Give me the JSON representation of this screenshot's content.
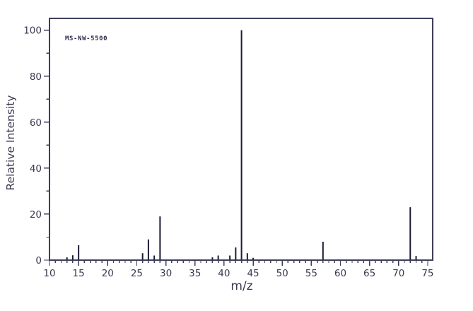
{
  "chart_data": {
    "type": "bar",
    "subtype": "mass-spectrum-stick-plot",
    "title": "",
    "annotation": "MS-NW-5500",
    "xlabel": "m/z",
    "ylabel": "Relative Intensity",
    "xlim": [
      10,
      76
    ],
    "ylim": [
      0,
      105
    ],
    "x_major_ticks": [
      10,
      15,
      20,
      25,
      30,
      35,
      40,
      45,
      50,
      55,
      60,
      65,
      70,
      75
    ],
    "x_minor_step": 1,
    "y_major_ticks": [
      0,
      20,
      40,
      60,
      80,
      100
    ],
    "y_minor_step": 10,
    "grid": false,
    "legend": false,
    "peaks": [
      {
        "mz": 13,
        "intensity": 1.2
      },
      {
        "mz": 14,
        "intensity": 2.1
      },
      {
        "mz": 15,
        "intensity": 6.5
      },
      {
        "mz": 26,
        "intensity": 3.0
      },
      {
        "mz": 27,
        "intensity": 9.0
      },
      {
        "mz": 28,
        "intensity": 2.0
      },
      {
        "mz": 29,
        "intensity": 19.0
      },
      {
        "mz": 38,
        "intensity": 1.2
      },
      {
        "mz": 39,
        "intensity": 2.0
      },
      {
        "mz": 41,
        "intensity": 2.0
      },
      {
        "mz": 42,
        "intensity": 5.5
      },
      {
        "mz": 43,
        "intensity": 100.0
      },
      {
        "mz": 44,
        "intensity": 3.0
      },
      {
        "mz": 45,
        "intensity": 1.0
      },
      {
        "mz": 57,
        "intensity": 8.0
      },
      {
        "mz": 72,
        "intensity": 23.0
      },
      {
        "mz": 73,
        "intensity": 1.8
      }
    ],
    "colors": {
      "background": "#ffffff",
      "axis": "#3e3e5a",
      "text": "#3a3a52",
      "peak": "#1c1c38"
    }
  }
}
